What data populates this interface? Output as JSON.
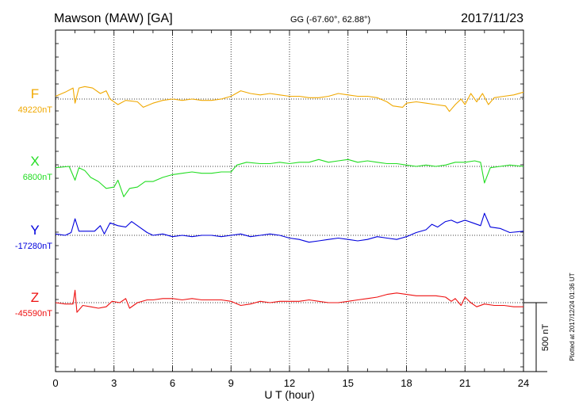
{
  "header": {
    "station": "Mawson (MAW)  [GA]",
    "coords": "GG (-67.60°,  62.88°)",
    "date": "2017/11/23"
  },
  "side_note": "Plotted at 2017/12/24 01:36 UT",
  "chart_data": {
    "type": "line",
    "xlabel": "U T (hour)",
    "xlim": [
      0,
      24
    ],
    "x_ticks": [
      0,
      3,
      6,
      9,
      12,
      15,
      18,
      21,
      24
    ],
    "grid": true,
    "scale_bar": {
      "value": 500,
      "label": "500 nT"
    },
    "series": [
      {
        "name": "F",
        "baseline_label": "49220nT",
        "baseline": 49220,
        "color": "#f0a800",
        "points": [
          [
            0,
            49240
          ],
          [
            0.5,
            49270
          ],
          [
            0.9,
            49300
          ],
          [
            1.0,
            49190
          ],
          [
            1.2,
            49300
          ],
          [
            1.5,
            49310
          ],
          [
            1.9,
            49300
          ],
          [
            2.3,
            49260
          ],
          [
            2.6,
            49280
          ],
          [
            2.8,
            49220
          ],
          [
            3.2,
            49180
          ],
          [
            3.6,
            49210
          ],
          [
            4.2,
            49200
          ],
          [
            4.5,
            49160
          ],
          [
            5.0,
            49190
          ],
          [
            5.5,
            49210
          ],
          [
            6.0,
            49220
          ],
          [
            6.5,
            49210
          ],
          [
            7.0,
            49220
          ],
          [
            7.5,
            49210
          ],
          [
            8.0,
            49210
          ],
          [
            8.5,
            49220
          ],
          [
            9.0,
            49240
          ],
          [
            9.5,
            49280
          ],
          [
            10.0,
            49260
          ],
          [
            10.5,
            49250
          ],
          [
            11.0,
            49260
          ],
          [
            11.5,
            49250
          ],
          [
            12.0,
            49240
          ],
          [
            12.5,
            49240
          ],
          [
            13.0,
            49230
          ],
          [
            13.5,
            49230
          ],
          [
            14.0,
            49240
          ],
          [
            14.5,
            49260
          ],
          [
            15.0,
            49250
          ],
          [
            15.5,
            49240
          ],
          [
            16.0,
            49240
          ],
          [
            16.5,
            49230
          ],
          [
            17.0,
            49200
          ],
          [
            17.3,
            49170
          ],
          [
            17.8,
            49160
          ],
          [
            18.0,
            49190
          ],
          [
            18.5,
            49200
          ],
          [
            19.0,
            49190
          ],
          [
            19.5,
            49180
          ],
          [
            20.0,
            49170
          ],
          [
            20.2,
            49130
          ],
          [
            20.5,
            49180
          ],
          [
            20.8,
            49220
          ],
          [
            21.0,
            49180
          ],
          [
            21.3,
            49260
          ],
          [
            21.6,
            49200
          ],
          [
            21.9,
            49260
          ],
          [
            22.2,
            49180
          ],
          [
            22.5,
            49230
          ],
          [
            23.0,
            49240
          ],
          [
            23.5,
            49250
          ],
          [
            24.0,
            49270
          ]
        ]
      },
      {
        "name": "X",
        "baseline_label": "6800nT",
        "baseline": 6800,
        "color": "#22dd22",
        "points": [
          [
            0,
            6790
          ],
          [
            0.7,
            6800
          ],
          [
            1.0,
            6700
          ],
          [
            1.2,
            6790
          ],
          [
            1.5,
            6770
          ],
          [
            1.8,
            6720
          ],
          [
            2.2,
            6690
          ],
          [
            2.6,
            6640
          ],
          [
            3.0,
            6650
          ],
          [
            3.2,
            6700
          ],
          [
            3.5,
            6580
          ],
          [
            3.8,
            6640
          ],
          [
            4.2,
            6650
          ],
          [
            4.6,
            6690
          ],
          [
            5.0,
            6690
          ],
          [
            5.5,
            6720
          ],
          [
            6.0,
            6740
          ],
          [
            6.5,
            6750
          ],
          [
            7.0,
            6760
          ],
          [
            7.5,
            6750
          ],
          [
            8.0,
            6750
          ],
          [
            8.5,
            6760
          ],
          [
            9.0,
            6760
          ],
          [
            9.3,
            6810
          ],
          [
            9.8,
            6830
          ],
          [
            10.5,
            6820
          ],
          [
            11.0,
            6820
          ],
          [
            11.5,
            6830
          ],
          [
            12.0,
            6820
          ],
          [
            12.5,
            6830
          ],
          [
            13.0,
            6830
          ],
          [
            13.5,
            6850
          ],
          [
            14.0,
            6830
          ],
          [
            14.5,
            6840
          ],
          [
            15.0,
            6850
          ],
          [
            15.5,
            6830
          ],
          [
            16.0,
            6840
          ],
          [
            16.5,
            6830
          ],
          [
            17.0,
            6820
          ],
          [
            17.5,
            6820
          ],
          [
            18.0,
            6810
          ],
          [
            18.5,
            6800
          ],
          [
            19.0,
            6810
          ],
          [
            19.5,
            6800
          ],
          [
            20.0,
            6810
          ],
          [
            20.5,
            6830
          ],
          [
            21.0,
            6830
          ],
          [
            21.5,
            6840
          ],
          [
            21.8,
            6830
          ],
          [
            22.0,
            6680
          ],
          [
            22.3,
            6790
          ],
          [
            22.8,
            6800
          ],
          [
            23.3,
            6810
          ],
          [
            24.0,
            6800
          ]
        ]
      },
      {
        "name": "Y",
        "baseline_label": "-17280nT",
        "baseline": -17280,
        "color": "#0000dd",
        "points": [
          [
            0,
            -17270
          ],
          [
            0.5,
            -17280
          ],
          [
            0.8,
            -17260
          ],
          [
            1.0,
            -17160
          ],
          [
            1.2,
            -17250
          ],
          [
            1.5,
            -17250
          ],
          [
            2.0,
            -17250
          ],
          [
            2.3,
            -17210
          ],
          [
            2.5,
            -17270
          ],
          [
            2.8,
            -17190
          ],
          [
            3.2,
            -17210
          ],
          [
            3.6,
            -17220
          ],
          [
            3.9,
            -17180
          ],
          [
            4.3,
            -17220
          ],
          [
            4.7,
            -17260
          ],
          [
            5.0,
            -17280
          ],
          [
            5.5,
            -17270
          ],
          [
            6.0,
            -17290
          ],
          [
            6.5,
            -17280
          ],
          [
            7.0,
            -17290
          ],
          [
            7.5,
            -17280
          ],
          [
            8.0,
            -17280
          ],
          [
            8.5,
            -17290
          ],
          [
            9.0,
            -17280
          ],
          [
            9.5,
            -17270
          ],
          [
            10.0,
            -17290
          ],
          [
            10.5,
            -17280
          ],
          [
            11.0,
            -17270
          ],
          [
            11.5,
            -17280
          ],
          [
            12.0,
            -17300
          ],
          [
            12.5,
            -17310
          ],
          [
            13.0,
            -17330
          ],
          [
            13.5,
            -17320
          ],
          [
            14.0,
            -17310
          ],
          [
            14.5,
            -17300
          ],
          [
            15.0,
            -17310
          ],
          [
            15.5,
            -17320
          ],
          [
            16.0,
            -17310
          ],
          [
            16.5,
            -17290
          ],
          [
            17.0,
            -17300
          ],
          [
            17.5,
            -17310
          ],
          [
            18.0,
            -17290
          ],
          [
            18.5,
            -17260
          ],
          [
            19.0,
            -17240
          ],
          [
            19.3,
            -17200
          ],
          [
            19.6,
            -17220
          ],
          [
            20.0,
            -17180
          ],
          [
            20.3,
            -17170
          ],
          [
            20.6,
            -17190
          ],
          [
            21.0,
            -17170
          ],
          [
            21.4,
            -17190
          ],
          [
            21.8,
            -17210
          ],
          [
            22.0,
            -17120
          ],
          [
            22.3,
            -17220
          ],
          [
            22.8,
            -17230
          ],
          [
            23.3,
            -17260
          ],
          [
            24.0,
            -17250
          ]
        ]
      },
      {
        "name": "Z",
        "baseline_label": "-45590nT",
        "baseline": -45590,
        "color": "#ee1111",
        "points": [
          [
            0,
            -45590
          ],
          [
            0.5,
            -45600
          ],
          [
            0.9,
            -45600
          ],
          [
            1.0,
            -45500
          ],
          [
            1.1,
            -45660
          ],
          [
            1.4,
            -45610
          ],
          [
            1.8,
            -45620
          ],
          [
            2.2,
            -45630
          ],
          [
            2.6,
            -45620
          ],
          [
            2.9,
            -45580
          ],
          [
            3.3,
            -45590
          ],
          [
            3.6,
            -45560
          ],
          [
            3.8,
            -45630
          ],
          [
            4.2,
            -45590
          ],
          [
            4.7,
            -45570
          ],
          [
            5.0,
            -45570
          ],
          [
            5.5,
            -45560
          ],
          [
            6.0,
            -45560
          ],
          [
            6.5,
            -45570
          ],
          [
            7.0,
            -45560
          ],
          [
            7.5,
            -45570
          ],
          [
            8.0,
            -45570
          ],
          [
            8.5,
            -45570
          ],
          [
            9.0,
            -45580
          ],
          [
            9.5,
            -45610
          ],
          [
            10.0,
            -45600
          ],
          [
            10.5,
            -45580
          ],
          [
            11.0,
            -45590
          ],
          [
            11.5,
            -45580
          ],
          [
            12.0,
            -45580
          ],
          [
            12.5,
            -45580
          ],
          [
            13.0,
            -45570
          ],
          [
            13.5,
            -45580
          ],
          [
            14.0,
            -45590
          ],
          [
            14.5,
            -45590
          ],
          [
            15.0,
            -45580
          ],
          [
            15.5,
            -45570
          ],
          [
            16.0,
            -45560
          ],
          [
            16.5,
            -45550
          ],
          [
            17.0,
            -45530
          ],
          [
            17.5,
            -45520
          ],
          [
            18.0,
            -45530
          ],
          [
            18.5,
            -45540
          ],
          [
            19.0,
            -45540
          ],
          [
            19.5,
            -45540
          ],
          [
            20.0,
            -45550
          ],
          [
            20.3,
            -45580
          ],
          [
            20.5,
            -45560
          ],
          [
            20.8,
            -45610
          ],
          [
            21.0,
            -45550
          ],
          [
            21.3,
            -45590
          ],
          [
            21.6,
            -45620
          ],
          [
            22.0,
            -45600
          ],
          [
            22.5,
            -45610
          ],
          [
            23.0,
            -45610
          ],
          [
            23.5,
            -45620
          ],
          [
            24.0,
            -45620
          ]
        ]
      }
    ]
  }
}
